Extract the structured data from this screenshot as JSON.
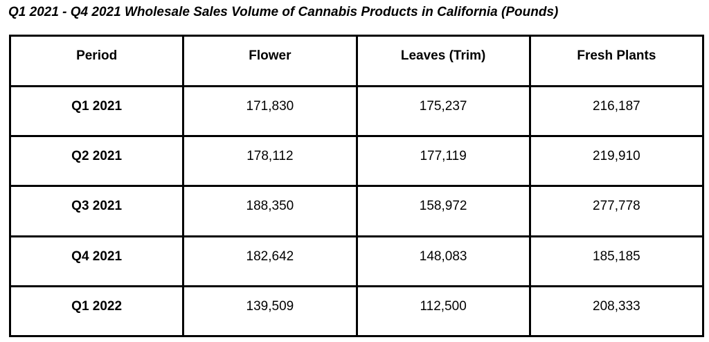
{
  "chart_data": {
    "type": "table",
    "title": "Q1 2021 - Q4 2021 Wholesale Sales Volume of Cannabis Products in California (Pounds)",
    "columns": [
      "Period",
      "Flower",
      "Leaves (Trim)",
      "Fresh Plants"
    ],
    "rows": [
      [
        "Q1 2021",
        "171,830",
        "175,237",
        "216,187"
      ],
      [
        "Q2 2021",
        "178,112",
        "177,119",
        "219,910"
      ],
      [
        "Q3 2021",
        "188,350",
        "158,972",
        "277,778"
      ],
      [
        "Q4 2021",
        "182,642",
        "148,083",
        "185,185"
      ],
      [
        "Q1 2022",
        "139,509",
        "112,500",
        "208,333"
      ]
    ]
  }
}
